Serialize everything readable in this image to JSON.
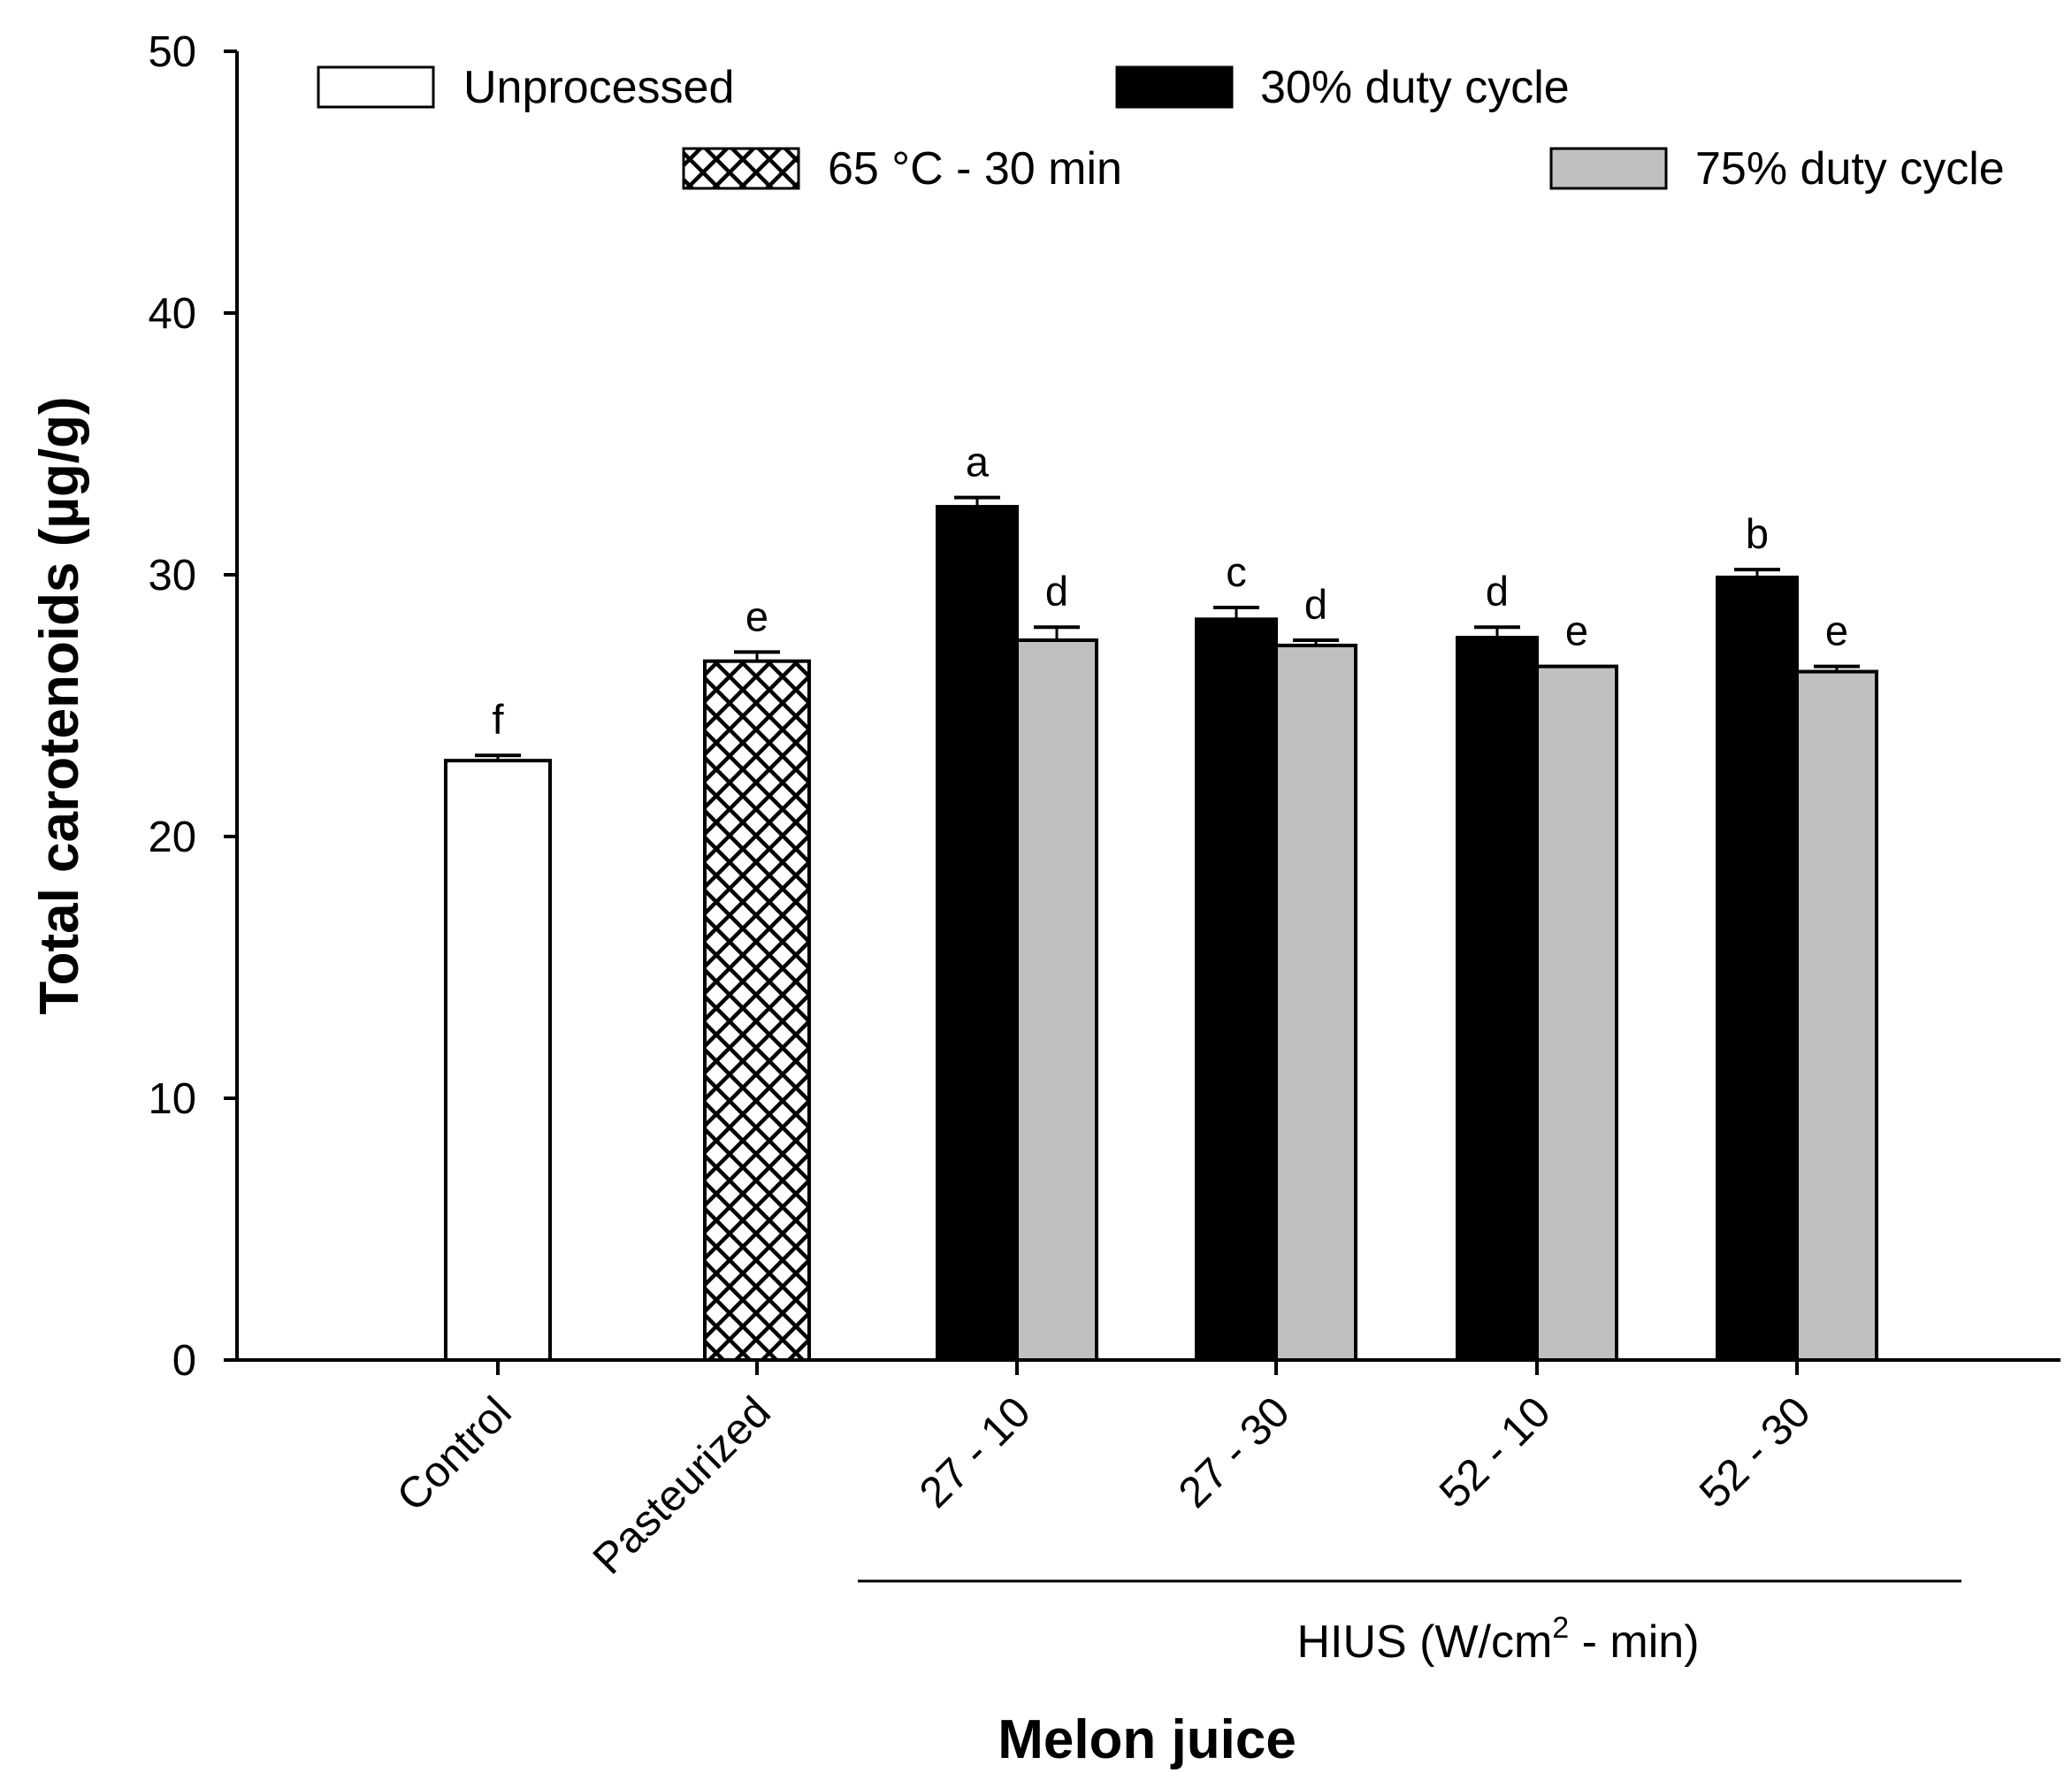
{
  "chart_data": {
    "type": "bar",
    "title": "",
    "xlabel": "Melon juice",
    "ylabel": "Total carotenoids (µg/g)",
    "ylim": [
      0,
      50
    ],
    "yticks": [
      0,
      10,
      20,
      30,
      40,
      50
    ],
    "grid": false,
    "categories": [
      "Control",
      "Pasteurized",
      "27 - 10",
      "27 - 30",
      "52 - 10",
      "52 - 30"
    ],
    "group_bracket": {
      "prefix": "HIUS (W/cm",
      "superscript": "2",
      "suffix": " - min)",
      "spans_categories": [
        "27 - 10",
        "27 - 30",
        "52 - 10",
        "52 - 30"
      ]
    },
    "legend": [
      {
        "key": "unprocessed",
        "label": "Unprocessed",
        "style": "white"
      },
      {
        "key": "duty30",
        "label": "30% duty cycle",
        "style": "black"
      },
      {
        "key": "pasteurized",
        "label": "65 °C - 30 min",
        "style": "crosshatch"
      },
      {
        "key": "duty75",
        "label": "75% duty cycle",
        "style": "gray"
      }
    ],
    "bars": [
      {
        "category": "Control",
        "series": "unprocessed",
        "value": 22.9,
        "error": 0.2,
        "letter": "f"
      },
      {
        "category": "Pasteurized",
        "series": "pasteurized",
        "value": 26.7,
        "error": 0.35,
        "letter": "e"
      },
      {
        "category": "27 - 10",
        "series": "duty30",
        "value": 32.6,
        "error": 0.35,
        "letter": "a"
      },
      {
        "category": "27 - 10",
        "series": "duty75",
        "value": 27.5,
        "error": 0.5,
        "letter": "d"
      },
      {
        "category": "27 - 30",
        "series": "duty30",
        "value": 28.3,
        "error": 0.45,
        "letter": "c"
      },
      {
        "category": "27 - 30",
        "series": "duty75",
        "value": 27.3,
        "error": 0.2,
        "letter": "d"
      },
      {
        "category": "52 - 10",
        "series": "duty30",
        "value": 27.6,
        "error": 0.4,
        "letter": "d"
      },
      {
        "category": "52 - 10",
        "series": "duty75",
        "value": 26.5,
        "error": 0.0,
        "letter": "e"
      },
      {
        "category": "52 - 30",
        "series": "duty30",
        "value": 29.9,
        "error": 0.3,
        "letter": "b"
      },
      {
        "category": "52 - 30",
        "series": "duty75",
        "value": 26.3,
        "error": 0.2,
        "letter": "e"
      }
    ],
    "colors": {
      "axis": "#000000",
      "white": "#ffffff",
      "black": "#000000",
      "gray": "#c0c0c0"
    }
  }
}
